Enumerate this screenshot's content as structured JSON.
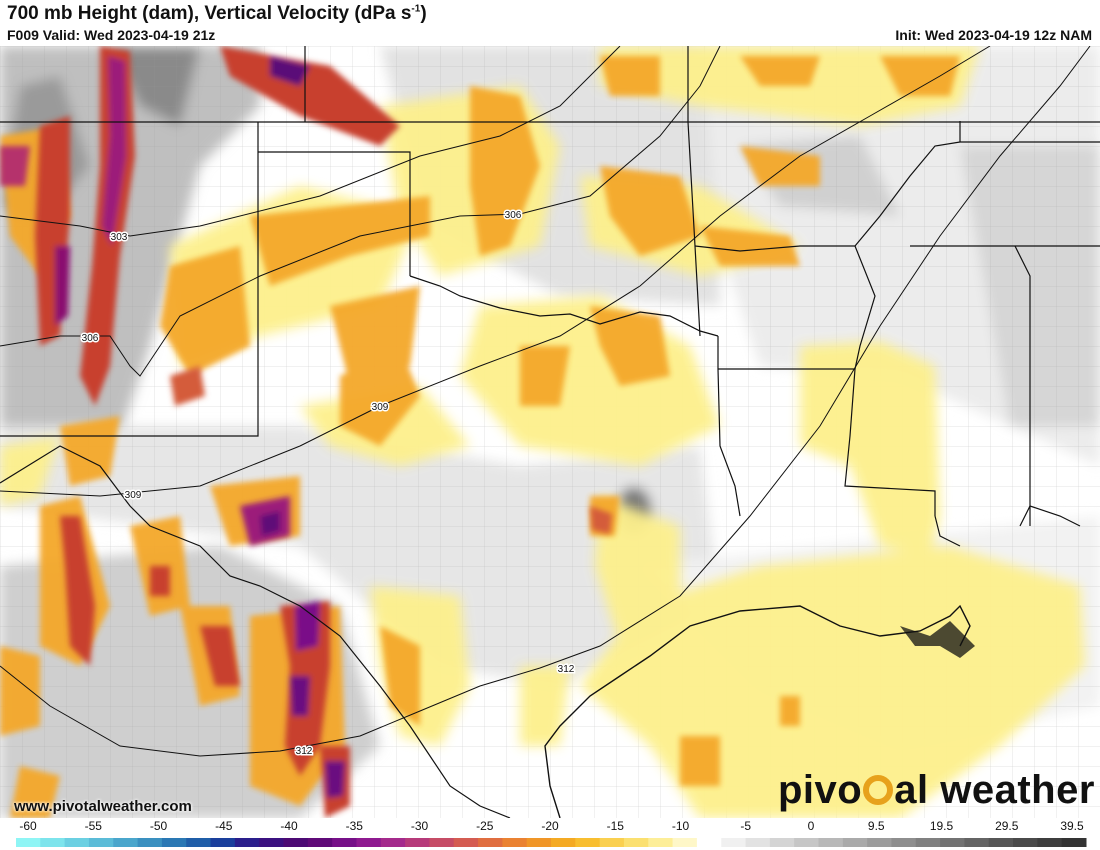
{
  "header": {
    "title_main": "700 mb Height (dam), Vertical Velocity (dPa s",
    "title_exp": "-1",
    "title_end": ")",
    "valid": "F009 Valid: Wed 2023-04-19 21z",
    "init": "Init: Wed 2023-04-19 12z NAM"
  },
  "contours": [
    {
      "label": "303"
    },
    {
      "label": "306"
    },
    {
      "label": "306"
    },
    {
      "label": "309"
    },
    {
      "label": "309"
    },
    {
      "label": "312"
    },
    {
      "label": "312"
    }
  ],
  "footer": {
    "website": "www.pivotalweather.com",
    "brand_left": "pivo",
    "brand_right": "al weather"
  },
  "legend": {
    "ticks": [
      "-60",
      "-55",
      "-50",
      "-45",
      "-40",
      "-35",
      "-30",
      "-25",
      "-20",
      "-15",
      "-10",
      "-5",
      "0",
      "9.5",
      "19.5",
      "29.5",
      "39.5"
    ],
    "colors": [
      "#8ff5f5",
      "#7de4ec",
      "#6bd0e2",
      "#5bbcd8",
      "#4aa6cc",
      "#3a90c0",
      "#2a78b4",
      "#1f5ea8",
      "#1a3f9c",
      "#2a1f8c",
      "#3b1180",
      "#4c0a74",
      "#5f0a78",
      "#761088",
      "#8e1a90",
      "#a42a8c",
      "#b63a7a",
      "#c64c66",
      "#d45c52",
      "#e06e40",
      "#ea8232",
      "#f09628",
      "#f4aa24",
      "#f8be30",
      "#fad050",
      "#fbe070",
      "#fdee98",
      "#fef7c8",
      "#ffffff",
      "#f0f0f0",
      "#e2e2e2",
      "#d4d4d4",
      "#c6c6c6",
      "#b8b8b8",
      "#aaaaaa",
      "#9c9c9c",
      "#8e8e8e",
      "#808080",
      "#727272",
      "#646464",
      "#565656",
      "#4a4a4a",
      "#3e3e3e",
      "#333333"
    ]
  }
}
